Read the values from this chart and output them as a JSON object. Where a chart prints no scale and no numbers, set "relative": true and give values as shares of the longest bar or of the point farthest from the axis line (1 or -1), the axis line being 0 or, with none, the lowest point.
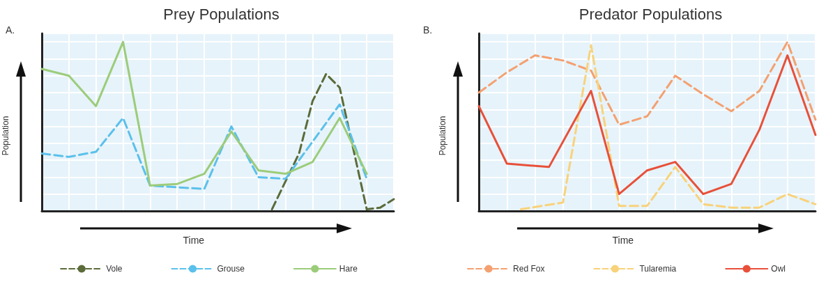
{
  "chart_data": [
    {
      "type": "line",
      "title": "Prey Populations",
      "xlabel": "Time",
      "ylabel": "Population",
      "annotations": [
        "A."
      ],
      "relative": true,
      "grid": true,
      "legend": "bottom",
      "marker": "none",
      "categories": [
        null,
        null,
        null,
        null,
        null,
        null,
        null,
        null,
        null,
        null,
        null,
        null,
        null,
        null,
        null,
        null,
        null,
        null,
        null,
        null,
        null,
        null,
        null,
        null,
        null,
        null,
        null
      ],
      "series": [
        {
          "name": "Vole",
          "color": "#5b6b3a",
          "line_style": "dashed",
          "values": [
            null,
            null,
            null,
            null,
            null,
            null,
            null,
            null,
            null,
            null,
            null,
            null,
            null,
            null,
            null,
            null,
            null,
            0.01,
            null,
            0.34,
            0.65,
            0.81,
            0.73,
            null,
            0.01,
            0.02,
            0.07
          ]
        },
        {
          "name": "Grouse",
          "color": "#5bc0eb",
          "line_style": "dashed",
          "values": [
            0.34,
            null,
            0.32,
            null,
            0.35,
            null,
            0.55,
            null,
            0.15,
            null,
            0.14,
            null,
            0.13,
            null,
            0.5,
            null,
            0.2,
            null,
            0.19,
            null,
            null,
            null,
            0.63,
            null,
            0.19,
            null,
            null
          ]
        },
        {
          "name": "Hare",
          "color": "#9ccc7a",
          "line_style": "solid",
          "values": [
            0.84,
            null,
            0.8,
            null,
            0.62,
            null,
            1.0,
            null,
            0.15,
            null,
            0.16,
            null,
            0.22,
            null,
            0.47,
            null,
            0.24,
            null,
            0.22,
            null,
            0.29,
            null,
            0.55,
            null,
            0.22,
            null,
            null
          ]
        }
      ]
    },
    {
      "type": "line",
      "title": "Predator Populations",
      "xlabel": "Time",
      "ylabel": "Population",
      "annotations": [
        "B."
      ],
      "relative": true,
      "grid": true,
      "legend": "bottom",
      "marker": "none",
      "categories": [
        null,
        null,
        null,
        null,
        null,
        null,
        null,
        null,
        null,
        null,
        null,
        null,
        null,
        null,
        null,
        null,
        null,
        null,
        null,
        null,
        null,
        null,
        null,
        null,
        null
      ],
      "series": [
        {
          "name": "Red Fox",
          "color": "#f4a070",
          "line_style": "dashed",
          "values": [
            0.7,
            null,
            0.82,
            null,
            0.92,
            null,
            0.89,
            null,
            0.83,
            null,
            0.51,
            null,
            0.56,
            null,
            0.8,
            null,
            0.69,
            null,
            0.59,
            null,
            0.71,
            null,
            1.0,
            null,
            0.54
          ]
        },
        {
          "name": "Tularemia",
          "color": "#f8d27a",
          "line_style": "dashed",
          "values": [
            null,
            null,
            null,
            0.01,
            null,
            null,
            0.05,
            null,
            0.98,
            null,
            0.03,
            null,
            0.03,
            null,
            0.26,
            null,
            0.04,
            null,
            0.02,
            null,
            0.02,
            null,
            0.1,
            null,
            0.04
          ]
        },
        {
          "name": "Owl",
          "color": "#e8503a",
          "line_style": "solid",
          "values": [
            0.62,
            null,
            0.28,
            null,
            null,
            0.26,
            null,
            null,
            0.71,
            null,
            0.1,
            null,
            0.24,
            null,
            0.29,
            null,
            0.1,
            null,
            0.16,
            null,
            0.48,
            null,
            0.92,
            null,
            0.45
          ]
        }
      ]
    }
  ]
}
